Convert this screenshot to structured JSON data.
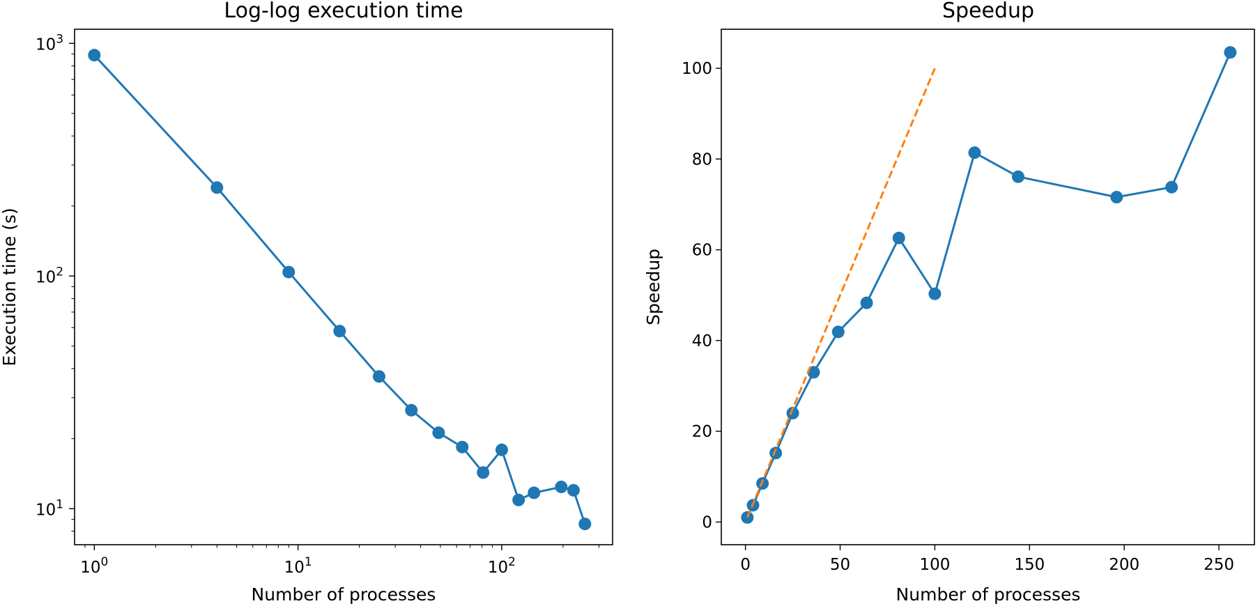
{
  "chart_data": [
    {
      "type": "line",
      "title": "Log-log execution time",
      "xlabel": "Number of processes",
      "ylabel": "Execution time (s)",
      "xscale": "log",
      "yscale": "log",
      "xlim": [
        0.8,
        350
      ],
      "ylim": [
        7,
        1150
      ],
      "xticks": [
        {
          "value": 1,
          "label": "10^0"
        },
        {
          "value": 10,
          "label": "10^1"
        },
        {
          "value": 100,
          "label": "10^2"
        }
      ],
      "yticks": [
        {
          "value": 10,
          "label": "10^1"
        },
        {
          "value": 100,
          "label": "10^2"
        },
        {
          "value": 1000,
          "label": "10^3"
        }
      ],
      "grid": false,
      "series": [
        {
          "color": "#1f77b4",
          "marker": "circle",
          "x": [
            1,
            4,
            9,
            16,
            25,
            36,
            49,
            64,
            81,
            100,
            121,
            144,
            196,
            225,
            256
          ],
          "y": [
            890,
            240,
            104,
            58,
            37,
            26.5,
            21.2,
            18.4,
            14.3,
            17.9,
            10.9,
            11.7,
            12.4,
            12.0,
            8.6
          ]
        }
      ]
    },
    {
      "type": "line",
      "title": "Speedup",
      "xlabel": "Number of processes",
      "ylabel": "Speedup",
      "xlim": [
        -12.75,
        268.75
      ],
      "ylim": [
        -5,
        108.6
      ],
      "xticks": [
        0,
        50,
        100,
        150,
        200,
        250
      ],
      "yticks": [
        0,
        20,
        40,
        60,
        80,
        100
      ],
      "grid": false,
      "series": [
        {
          "color": "#1f77b4",
          "marker": "circle",
          "x": [
            1,
            4,
            9,
            16,
            25,
            36,
            49,
            64,
            81,
            100,
            121,
            144,
            196,
            225,
            256
          ],
          "y": [
            1,
            3.7,
            8.5,
            15.2,
            24,
            33,
            41.9,
            48.3,
            62.6,
            50.3,
            81.4,
            76.1,
            71.6,
            73.8,
            103.5
          ]
        },
        {
          "color": "#ff7f0e",
          "style": "dashed",
          "x": [
            1,
            100
          ],
          "y": [
            1,
            100
          ]
        }
      ]
    }
  ]
}
